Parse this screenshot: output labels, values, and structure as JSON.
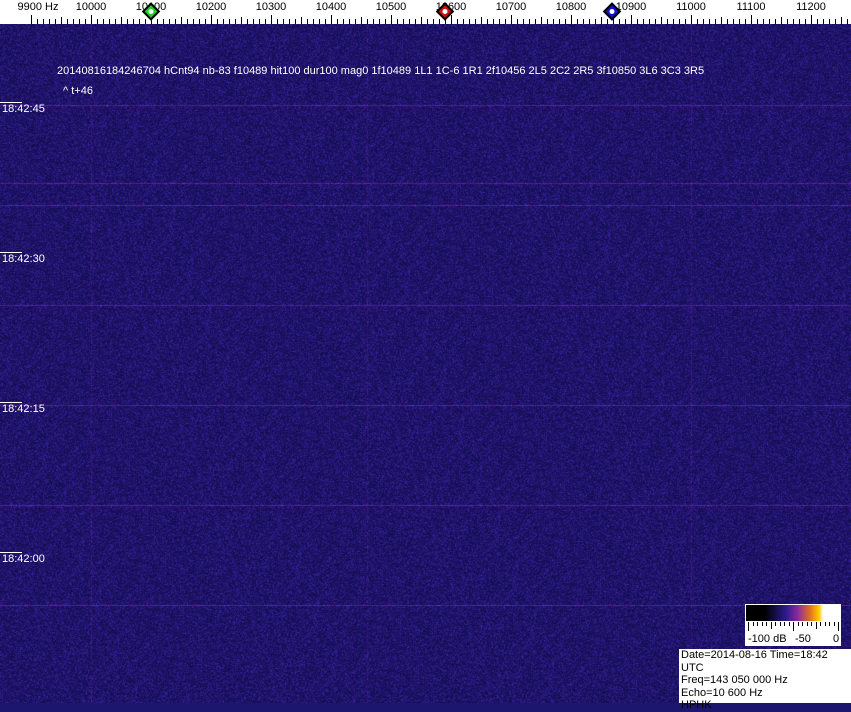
{
  "frequency_axis": {
    "unit_label": "9900 Hz",
    "labels": [
      "10000",
      "10100",
      "10200",
      "10300",
      "10400",
      "10500",
      "10600",
      "10700",
      "10800",
      "10900",
      "11000",
      "11100",
      "11200"
    ],
    "start_hz": 9900,
    "end_hz": 11265
  },
  "markers": [
    {
      "name": "green-marker",
      "freq_hz": 10100,
      "color": "#22cc22"
    },
    {
      "name": "red-marker",
      "freq_hz": 10590,
      "color": "#cc1111"
    },
    {
      "name": "blue-marker",
      "freq_hz": 10868,
      "color": "#1111cc"
    }
  ],
  "overlay": {
    "detection_line": "20140816184246704 hCnt94 nb-83 f10489 hit100 dur100 mag0 1f10489 1L1 1C-6 1R1 2f10456 2L5 2C2 2R5 3f10850 3L6 3C3 3R5",
    "offset_line": "^ t+46"
  },
  "time_labels": [
    "18:42:45",
    "18:42:30",
    "18:42:15",
    "18:42:00"
  ],
  "color_scale": {
    "labels": [
      "-100 dB",
      "-50",
      "0"
    ]
  },
  "info": {
    "date_time": "Date=2014-08-16 Time=18:42 UTC",
    "freq": "Freq=143 050 000 Hz",
    "echo": "Echo=10 600 Hz",
    "station": "HPHK"
  },
  "colors": {
    "background": "#1c166e",
    "grid_line": "#7a2a8a"
  }
}
